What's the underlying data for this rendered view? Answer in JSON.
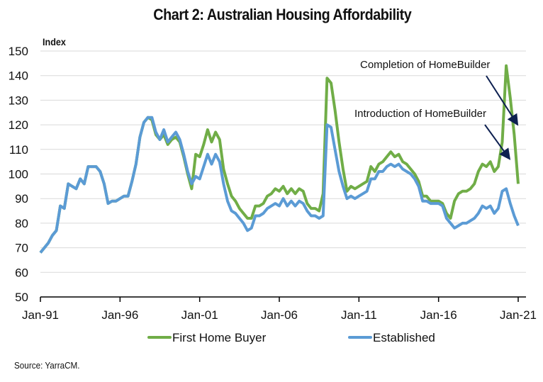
{
  "chart_data": {
    "type": "line",
    "title": "Chart 2: Australian Housing Affordability",
    "ylabel": "Index",
    "xlabel": "",
    "ylim": [
      50,
      150
    ],
    "yticks": [
      50,
      60,
      70,
      80,
      90,
      100,
      110,
      120,
      130,
      140,
      150
    ],
    "xtick_labels": [
      "Jan-91",
      "Jan-96",
      "Jan-01",
      "Jan-06",
      "Jan-11",
      "Jan-16",
      "Jan-21"
    ],
    "xtick_years": [
      1991,
      1996,
      2001,
      2006,
      2011,
      2016,
      2021
    ],
    "x_start": 1991.0,
    "x_step": 0.25,
    "grid": true,
    "legend_position": "bottom",
    "series": [
      {
        "name": "First Home Buyer",
        "color": "#70AD47",
        "values": [
          68,
          70,
          72,
          75,
          77,
          87,
          86,
          96,
          95,
          94,
          98,
          96,
          103,
          103,
          103,
          101,
          96,
          88,
          89,
          89,
          90,
          91,
          91,
          97,
          104,
          115,
          121,
          123,
          122,
          116,
          114,
          116,
          112,
          114,
          115,
          113,
          107,
          100,
          94,
          108,
          107,
          112,
          118,
          113,
          117,
          114,
          102,
          96,
          91,
          89,
          86,
          84,
          82,
          82,
          87,
          87,
          88,
          91,
          92,
          94,
          93,
          95,
          92,
          94,
          92,
          94,
          93,
          88,
          86,
          86,
          85,
          92,
          139,
          137,
          126,
          113,
          102,
          93,
          95,
          94,
          95,
          96,
          97,
          103,
          101,
          104,
          105,
          107,
          109,
          107,
          108,
          105,
          104,
          102,
          100,
          97,
          91,
          91,
          89,
          89,
          89,
          88,
          84,
          82,
          89,
          92,
          93,
          93,
          94,
          96,
          101,
          104,
          103,
          105,
          101,
          103,
          113,
          144,
          131,
          116,
          96
        ],
        "annotations": [
          {
            "text": "Introduction of HomeBuilder",
            "target_year": 2020.5,
            "target_value": 106
          },
          {
            "text": "Completion of HomeBuilder",
            "target_year": 2021.0,
            "target_value": 120
          }
        ]
      },
      {
        "name": "Established",
        "color": "#5B9BD5",
        "values": [
          68,
          70,
          72,
          75,
          77,
          87,
          86,
          96,
          95,
          94,
          98,
          96,
          103,
          103,
          103,
          101,
          96,
          88,
          89,
          89,
          90,
          91,
          91,
          97,
          104,
          115,
          121,
          123,
          123,
          117,
          114,
          118,
          113,
          115,
          117,
          114,
          108,
          101,
          96,
          99,
          98,
          103,
          108,
          104,
          108,
          105,
          96,
          89,
          85,
          84,
          82,
          80,
          77,
          78,
          83,
          83,
          84,
          86,
          87,
          88,
          87,
          90,
          87,
          89,
          87,
          89,
          88,
          85,
          83,
          83,
          82,
          83,
          120,
          119,
          110,
          101,
          95,
          90,
          91,
          90,
          91,
          92,
          93,
          98,
          98,
          101,
          101,
          103,
          104,
          103,
          104,
          102,
          101,
          100,
          98,
          95,
          89,
          89,
          88,
          88,
          88,
          87,
          82,
          80,
          78,
          79,
          80,
          80,
          81,
          82,
          84,
          87,
          86,
          87,
          84,
          86,
          93,
          94,
          88,
          83,
          79
        ]
      }
    ]
  },
  "source": "Source: YarraCM."
}
